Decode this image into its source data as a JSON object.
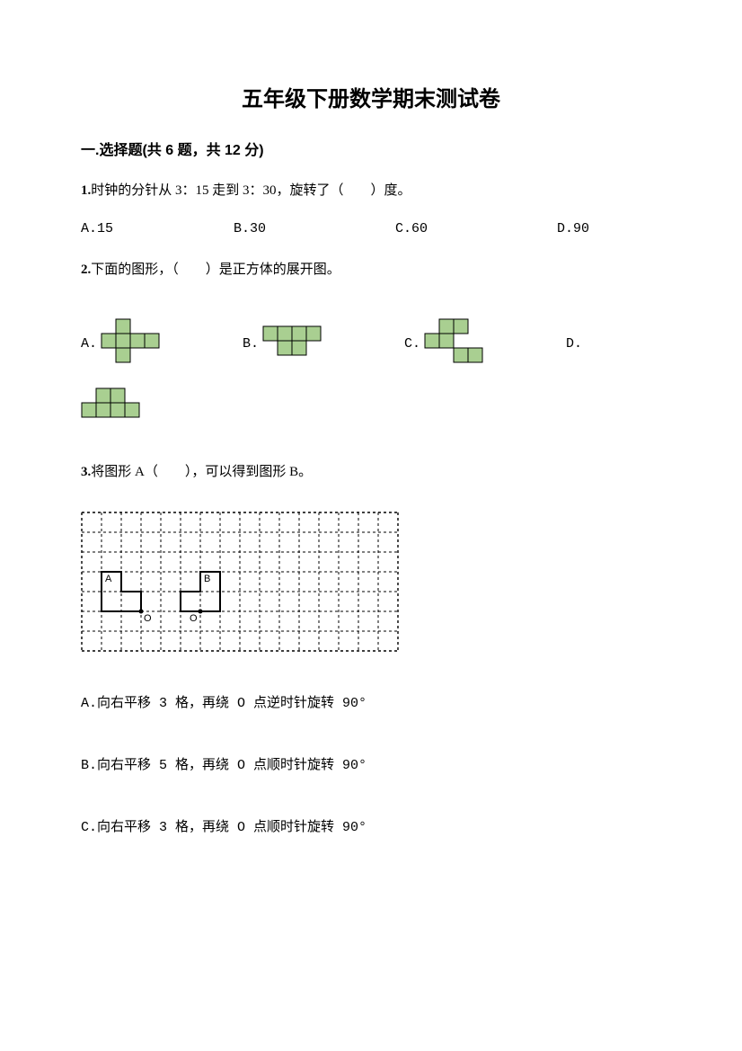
{
  "title": "五年级下册数学期末测试卷",
  "section1": {
    "header": "一.选择题(共 6 题，共 12 分)",
    "q1": {
      "num": "1.",
      "text": "时钟的分针从 3：15 走到 3：30，旋转了（　　）度。",
      "opts": {
        "a": "A.15",
        "b": "B.30",
        "c": "C.60",
        "d": "D.90"
      }
    },
    "q2": {
      "num": "2.",
      "text": "下面的图形，（　　）是正方体的展开图。",
      "labels": {
        "a": "A.",
        "b": "B.",
        "c": "C.",
        "d": "D."
      },
      "net_colors": {
        "fill": "#a9cf91",
        "stroke": "#000000"
      },
      "cell_size": 16,
      "netA": [
        [
          1,
          0
        ],
        [
          0,
          1
        ],
        [
          1,
          1
        ],
        [
          2,
          1
        ],
        [
          3,
          1
        ],
        [
          1,
          2
        ]
      ],
      "netB": [
        [
          0,
          0
        ],
        [
          1,
          0
        ],
        [
          2,
          0
        ],
        [
          3,
          0
        ],
        [
          1,
          1
        ],
        [
          2,
          1
        ]
      ],
      "netC": [
        [
          1,
          0
        ],
        [
          2,
          0
        ],
        [
          0,
          1
        ],
        [
          1,
          1
        ],
        [
          2,
          2
        ],
        [
          3,
          2
        ]
      ],
      "netD": [
        [
          1,
          0
        ],
        [
          2,
          0
        ],
        [
          0,
          1
        ],
        [
          1,
          1
        ],
        [
          2,
          1
        ],
        [
          3,
          1
        ]
      ]
    },
    "q3": {
      "num": "3.",
      "text": "将图形 A（　　），可以得到图形 B。",
      "grid": {
        "cols": 16,
        "rows": 7,
        "cell": 22,
        "border_dash": "3 3",
        "border_color": "#000000"
      },
      "labels": {
        "A": "A",
        "B": "B",
        "O1": "O",
        "O2": "O"
      },
      "opts": {
        "a": "A.向右平移 3 格，再绕 O 点逆时针旋转 90°",
        "b": "B.向右平移 5 格，再绕 O 点顺时针旋转 90°",
        "c": "C.向右平移 3 格，再绕 O 点顺时针旋转 90°"
      }
    }
  }
}
